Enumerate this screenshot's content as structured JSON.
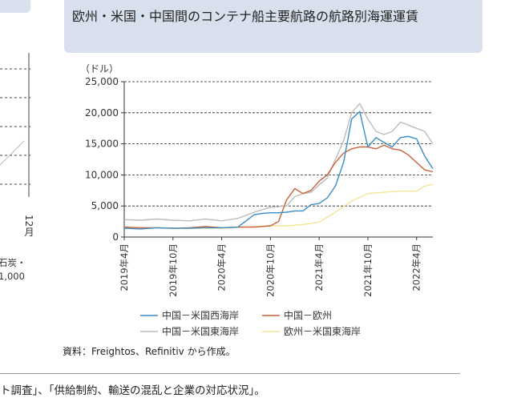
{
  "page": {
    "title": "欧州・米国・中国間のコンテナ船主要航路の航路別海運運賃",
    "source": "資料：Freightos、Refinitiv から作成。",
    "footer": "ト調査」、「供給制約、輸送の混乱と企業の対応状況」。",
    "left_fragments": [
      "12月",
      "石炭・",
      "1,000"
    ]
  },
  "colors": {
    "china_us_west": "#3a8ec8",
    "china_europe": "#c8623a",
    "china_us_east": "#bcbcbc",
    "europe_us_east": "#f7e39a",
    "title_bg": "#d8e0ee"
  },
  "chart_data": {
    "type": "line",
    "ylabel": "（ドル）",
    "ylim": [
      0,
      25000
    ],
    "yticks": [
      0,
      5000,
      10000,
      15000,
      20000,
      25000
    ],
    "ytick_labels": [
      "0",
      "5,000",
      "10,000",
      "15,000",
      "20,000",
      "25,000"
    ],
    "xlim": [
      "2019-04",
      "2022-06"
    ],
    "xticks": [
      "2019-04",
      "2019-10",
      "2020-04",
      "2020-10",
      "2021-04",
      "2021-10",
      "2022-04"
    ],
    "xtick_labels": [
      "2019年4月",
      "2019年10月",
      "2020年4月",
      "2020年10月",
      "2021年4月",
      "2021年10月",
      "2022年4月"
    ],
    "grid": "horizontal-dashed",
    "legend": "bottom",
    "series": [
      {
        "name": "中国－米国西海岸",
        "color": "#3a8ec8",
        "x": [
          "2019-04",
          "2019-06",
          "2019-08",
          "2019-10",
          "2019-12",
          "2020-02",
          "2020-04",
          "2020-06",
          "2020-07",
          "2020-08",
          "2020-09",
          "2020-10",
          "2020-11",
          "2020-12",
          "2021-01",
          "2021-02",
          "2021-03",
          "2021-04",
          "2021-05",
          "2021-06",
          "2021-07",
          "2021-08",
          "2021-09",
          "2021-10",
          "2021-11",
          "2021-12",
          "2022-01",
          "2022-02",
          "2022-03",
          "2022-04",
          "2022-05",
          "2022-06"
        ],
        "y": [
          1400,
          1300,
          1500,
          1400,
          1400,
          1500,
          1500,
          1600,
          2600,
          3600,
          3800,
          3900,
          3900,
          4000,
          4200,
          4200,
          5200,
          5400,
          6300,
          8200,
          12000,
          19000,
          20200,
          14500,
          16000,
          15200,
          14500,
          16000,
          16200,
          15800,
          13000,
          11000
        ]
      },
      {
        "name": "中国－欧州",
        "color": "#c8623a",
        "x": [
          "2019-04",
          "2019-06",
          "2019-08",
          "2019-10",
          "2019-12",
          "2020-02",
          "2020-04",
          "2020-06",
          "2020-08",
          "2020-10",
          "2020-11",
          "2020-12",
          "2021-01",
          "2021-02",
          "2021-03",
          "2021-04",
          "2021-05",
          "2021-06",
          "2021-07",
          "2021-08",
          "2021-09",
          "2021-10",
          "2021-11",
          "2021-12",
          "2022-01",
          "2022-02",
          "2022-03",
          "2022-04",
          "2022-05",
          "2022-06"
        ],
        "y": [
          1600,
          1500,
          1500,
          1400,
          1500,
          1700,
          1500,
          1600,
          1600,
          1800,
          2500,
          6000,
          7800,
          7000,
          7500,
          9000,
          10000,
          12000,
          13500,
          14200,
          14500,
          14500,
          14200,
          14800,
          14200,
          14000,
          13200,
          12000,
          10800,
          10500
        ]
      },
      {
        "name": "中国－米国東海岸",
        "color": "#bcbcbc",
        "x": [
          "2019-04",
          "2019-06",
          "2019-08",
          "2019-10",
          "2019-12",
          "2020-02",
          "2020-04",
          "2020-06",
          "2020-08",
          "2020-10",
          "2020-12",
          "2021-01",
          "2021-02",
          "2021-03",
          "2021-04",
          "2021-05",
          "2021-06",
          "2021-07",
          "2021-08",
          "2021-09",
          "2021-10",
          "2021-11",
          "2021-12",
          "2022-01",
          "2022-02",
          "2022-03",
          "2022-04",
          "2022-05",
          "2022-06"
        ],
        "y": [
          2800,
          2700,
          2900,
          2700,
          2600,
          2900,
          2600,
          3000,
          4000,
          4800,
          5000,
          6500,
          7000,
          7200,
          8400,
          9500,
          12500,
          15500,
          20000,
          21500,
          19000,
          17000,
          16500,
          17000,
          18500,
          18000,
          17500,
          17000,
          15000
        ]
      },
      {
        "name": "欧州－米国東海岸",
        "color": "#f7e39a",
        "x": [
          "2019-04",
          "2019-10",
          "2020-04",
          "2020-08",
          "2020-10",
          "2020-12",
          "2021-02",
          "2021-04",
          "2021-06",
          "2021-08",
          "2021-10",
          "2021-12",
          "2022-02",
          "2022-04",
          "2022-05",
          "2022-06"
        ],
        "y": [
          1500,
          1400,
          1400,
          1700,
          1800,
          1800,
          2000,
          2400,
          4000,
          5800,
          7000,
          7200,
          7400,
          7400,
          8200,
          8500
        ]
      }
    ]
  }
}
